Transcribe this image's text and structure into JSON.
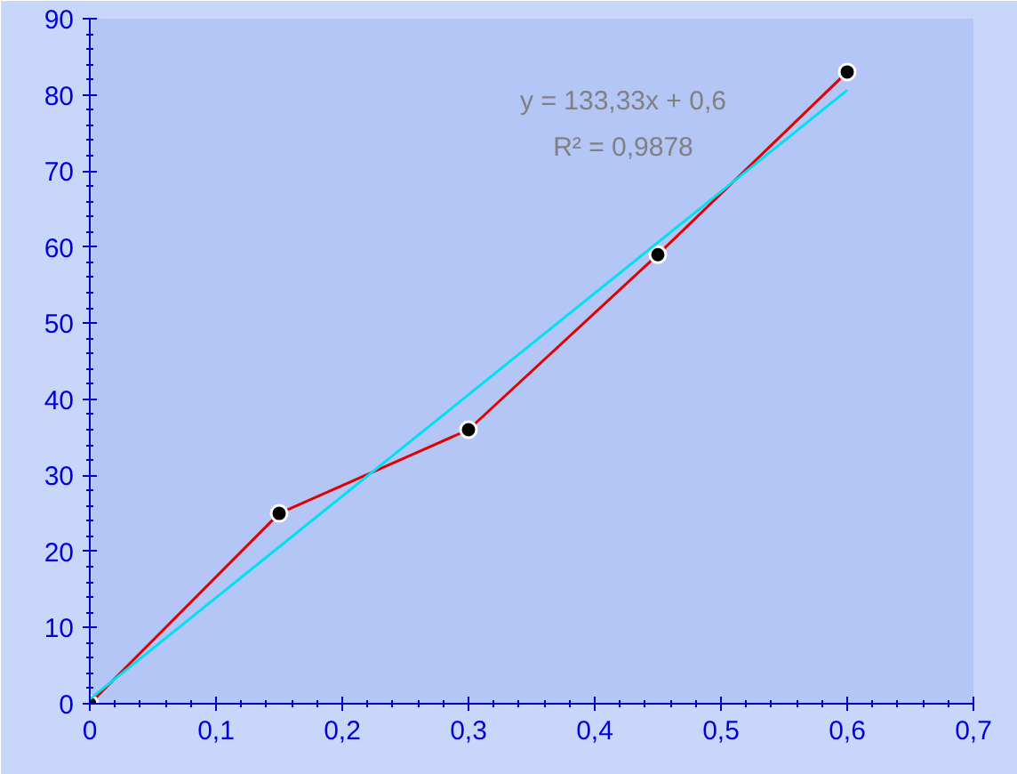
{
  "chart_data": {
    "type": "line",
    "x": [
      0,
      0.15,
      0.3,
      0.45,
      0.6
    ],
    "series": [
      {
        "color": "#e00000",
        "values": [
          0,
          25,
          36,
          59,
          83
        ],
        "marker": "circle"
      },
      {
        "color": "#00e0f0",
        "x": [
          0,
          0.6
        ],
        "values": [
          0.6,
          80.6
        ],
        "marker": "none"
      }
    ],
    "annotations": [
      "y = 133,33x + 0,6",
      "R² = 0,9878"
    ],
    "xlim": [
      0,
      0.7
    ],
    "ylim": [
      0,
      90
    ],
    "xticks": [
      0,
      {
        "value": 0.1,
        "label": "0,1"
      },
      {
        "value": 0.2,
        "label": "0,2"
      },
      {
        "value": 0.3,
        "label": "0,3"
      },
      {
        "value": 0.4,
        "label": "0,4"
      },
      {
        "value": 0.5,
        "label": "0,5"
      },
      {
        "value": 0.6,
        "label": "0,6"
      },
      {
        "value": 0.7,
        "label": "0,7"
      }
    ],
    "yticks": [
      0,
      10,
      20,
      30,
      40,
      50,
      60,
      70,
      80,
      90
    ],
    "grid": false
  }
}
